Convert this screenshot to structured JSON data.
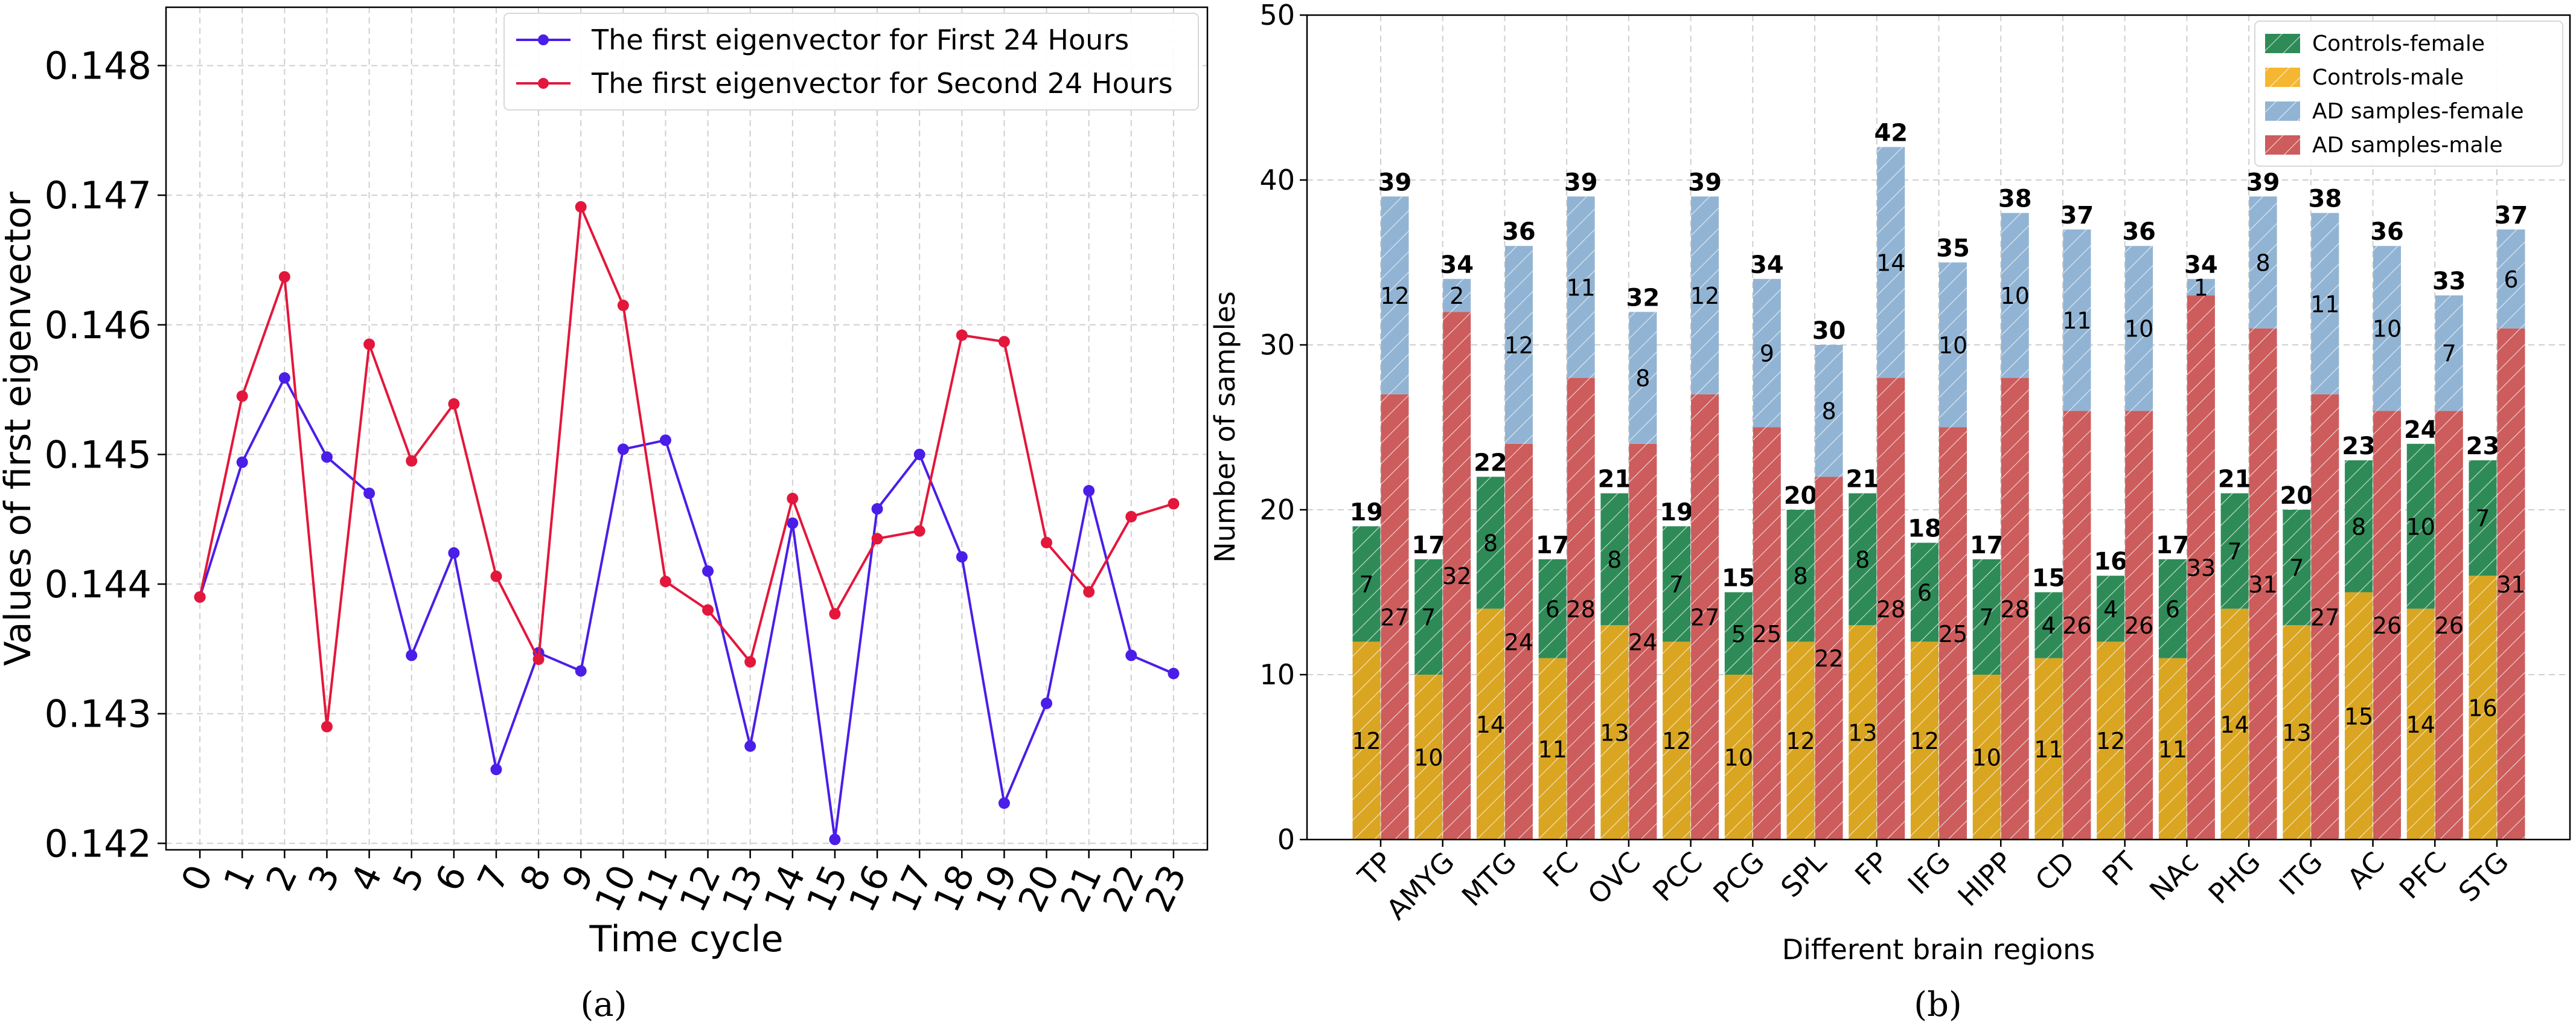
{
  "colors": {
    "series_a": "#4a1ee8",
    "series_b": "#e3173b",
    "controls_female": "#2e8b57",
    "controls_male": "#daa520",
    "ad_female": "#92b4d4",
    "ad_male": "#cd5c5c",
    "grid": "#cfcfcf"
  },
  "chart_data": [
    {
      "type": "line",
      "panel_label": "(a)",
      "title": "",
      "xlabel": "Time cycle",
      "ylabel": "Values of first eigenvector",
      "x": [
        0,
        1,
        2,
        3,
        4,
        5,
        6,
        7,
        8,
        9,
        10,
        11,
        12,
        13,
        14,
        15,
        16,
        17,
        18,
        19,
        20,
        21,
        22,
        23
      ],
      "xlim": [
        -0.8,
        23.8
      ],
      "ylim": [
        0.14195,
        0.14845
      ],
      "yticks": [
        0.142,
        0.143,
        0.144,
        0.145,
        0.146,
        0.147,
        0.148
      ],
      "ytick_labels": [
        "0.142",
        "0.143",
        "0.144",
        "0.145",
        "0.146",
        "0.147",
        "0.148"
      ],
      "legend_position": "top-right",
      "series": [
        {
          "name": "The first eigenvector for First 24 Hours",
          "color": "#4a1ee8",
          "values": [
            0.1439,
            0.14494,
            0.14559,
            0.14498,
            0.1447,
            0.14345,
            0.14424,
            0.14257,
            0.14347,
            0.14333,
            0.14504,
            0.14511,
            0.1441,
            0.14275,
            0.14447,
            0.14203,
            0.14458,
            0.145,
            0.14421,
            0.14231,
            0.14308,
            0.14472,
            0.14345,
            0.14331
          ]
        },
        {
          "name": "The first eigenvector for Second 24 Hours",
          "color": "#e3173b",
          "values": [
            0.1439,
            0.14545,
            0.14637,
            0.1429,
            0.14585,
            0.14495,
            0.14539,
            0.14406,
            0.14342,
            0.14691,
            0.14615,
            0.14402,
            0.1438,
            0.1434,
            0.14466,
            0.14377,
            0.14435,
            0.14441,
            0.14592,
            0.14587,
            0.14432,
            0.14394,
            0.14452,
            0.14462
          ]
        }
      ]
    },
    {
      "type": "bar",
      "stacked": true,
      "panel_label": "(b)",
      "title": "",
      "xlabel": "Different brain regions",
      "ylabel": "Number of samples",
      "ylim": [
        0,
        50
      ],
      "yticks": [
        0,
        10,
        20,
        30,
        40,
        50
      ],
      "ytick_labels": [
        "0",
        "10",
        "20",
        "30",
        "40",
        "50"
      ],
      "legend_position": "top-right",
      "categories": [
        "TP",
        "AMYG",
        "MTG",
        "FC",
        "OVC",
        "PCC",
        "PCG",
        "SPL",
        "FP",
        "IFG",
        "HIPP",
        "CD",
        "PT",
        "NAc",
        "PHG",
        "ITG",
        "AC",
        "PFC",
        "STG"
      ],
      "groups": [
        {
          "name": "Controls",
          "totals": [
            19,
            17,
            22,
            17,
            21,
            19,
            15,
            20,
            21,
            18,
            17,
            15,
            16,
            17,
            21,
            20,
            23,
            24,
            23
          ],
          "total_labels": [
            "19",
            "17",
            "22",
            "17",
            "21",
            "19",
            "15",
            "20",
            "21",
            "18",
            "17",
            "15",
            "16",
            "17",
            "21",
            "20",
            "23",
            "24",
            "23"
          ],
          "series": [
            {
              "name": "Controls-male",
              "color": "#daa520",
              "values": [
                12,
                10,
                14,
                11,
                13,
                12,
                10,
                12,
                13,
                12,
                10,
                11,
                12,
                11,
                14,
                13,
                15,
                14,
                16
              ],
              "labels": [
                "12",
                "10",
                "14",
                "11",
                "13",
                "12",
                "10",
                "12",
                "13",
                "12",
                "10",
                "11",
                "12",
                "11",
                "14",
                "13",
                "15",
                "14",
                "16"
              ]
            },
            {
              "name": "Controls-female",
              "color": "#2e8b57",
              "values": [
                7,
                7,
                8,
                6,
                8,
                7,
                5,
                8,
                8,
                6,
                7,
                4,
                4,
                6,
                7,
                7,
                8,
                10,
                7
              ],
              "labels": [
                "7",
                "7",
                "8",
                "6",
                "8",
                "7",
                "5",
                "8",
                "8",
                "6",
                "7",
                "4",
                "4",
                "6",
                "7",
                "7",
                "8",
                "10",
                "7"
              ]
            }
          ]
        },
        {
          "name": "AD samples",
          "totals": [
            39,
            34,
            36,
            39,
            32,
            39,
            34,
            30,
            42,
            35,
            38,
            37,
            36,
            34,
            39,
            38,
            36,
            33,
            37
          ],
          "total_labels": [
            "39",
            "34",
            "36",
            "39",
            "32",
            "39",
            "34",
            "30",
            "42",
            "35",
            "38",
            "37",
            "36",
            "34",
            "39",
            "38",
            "36",
            "33",
            "37"
          ],
          "series": [
            {
              "name": "AD samples-male",
              "color": "#cd5c5c",
              "values": [
                27,
                32,
                24,
                28,
                24,
                27,
                25,
                22,
                28,
                25,
                28,
                26,
                26,
                33,
                31,
                27,
                26,
                26,
                31
              ],
              "labels": [
                "27",
                "32",
                "24",
                "28",
                "24",
                "27",
                "25",
                "22",
                "28",
                "25",
                "28",
                "26",
                "26",
                "33",
                "31",
                "27",
                "26",
                "26",
                "31"
              ]
            },
            {
              "name": "AD samples-female",
              "color": "#92b4d4",
              "values": [
                12,
                2,
                12,
                11,
                8,
                12,
                9,
                8,
                14,
                10,
                10,
                11,
                10,
                1,
                8,
                11,
                10,
                7,
                6
              ],
              "labels": [
                "12",
                "2",
                "12",
                "11",
                "8",
                "12",
                "9",
                "8",
                "14",
                "10",
                "10",
                "11",
                "10",
                "1",
                "8",
                "11",
                "10",
                "7",
                "6"
              ]
            }
          ]
        }
      ],
      "legend": [
        "Controls-female",
        "Controls-male",
        "AD samples-female",
        "AD samples-male"
      ]
    }
  ]
}
